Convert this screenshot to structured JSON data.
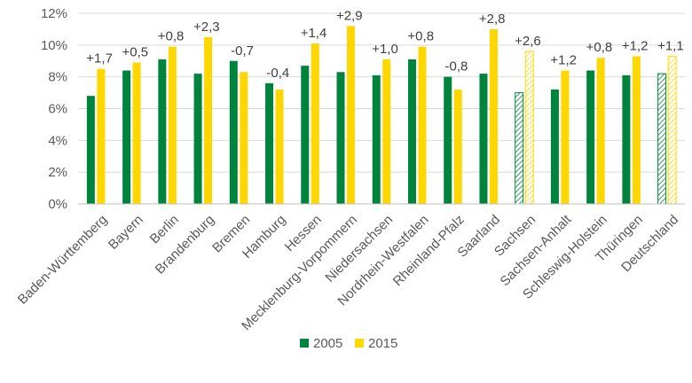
{
  "chart_data": {
    "type": "bar",
    "categories": [
      "Baden-Württemberg",
      "Bayern",
      "Berlin",
      "Brandenburg",
      "Bremen",
      "Hamburg",
      "Hessen",
      "Mecklenburg-Vorpommern",
      "Niedersachsen",
      "Nordrhein-Westfalen",
      "Rheinland-Pfalz",
      "Saarland",
      "Sachsen",
      "Sachsen-Anhalt",
      "Schleswig-Holstein",
      "Thüringen",
      "Deutschland"
    ],
    "series": [
      {
        "name": "2005",
        "color": "#00843D",
        "values": [
          6.8,
          8.4,
          9.1,
          8.2,
          9.0,
          7.6,
          8.7,
          8.3,
          8.1,
          9.1,
          8.0,
          8.2,
          7.0,
          7.2,
          8.4,
          8.1,
          8.2
        ]
      },
      {
        "name": "2015",
        "color": "#FFD700",
        "values": [
          8.5,
          8.9,
          9.9,
          10.5,
          8.3,
          7.2,
          10.1,
          11.2,
          9.1,
          9.9,
          7.2,
          11.0,
          9.6,
          8.4,
          9.2,
          9.3,
          9.3
        ]
      }
    ],
    "data_labels": [
      "+1,7",
      "+0,5",
      "+0,8",
      "+2,3",
      "-0,7",
      "-0,4",
      "+1,4",
      "+2,9",
      "+1,0",
      "+0,8",
      "-0,8",
      "+2,8",
      "+2,6",
      "+1,2",
      "+0,8",
      "+1,2",
      "+1,1"
    ],
    "hatched_categories": [
      "Sachsen",
      "Deutschland"
    ],
    "y_ticks": [
      "0%",
      "2%",
      "4%",
      "6%",
      "8%",
      "10%",
      "12%"
    ],
    "ylim": [
      0,
      12
    ],
    "grid": true,
    "legend_position": "bottom"
  }
}
